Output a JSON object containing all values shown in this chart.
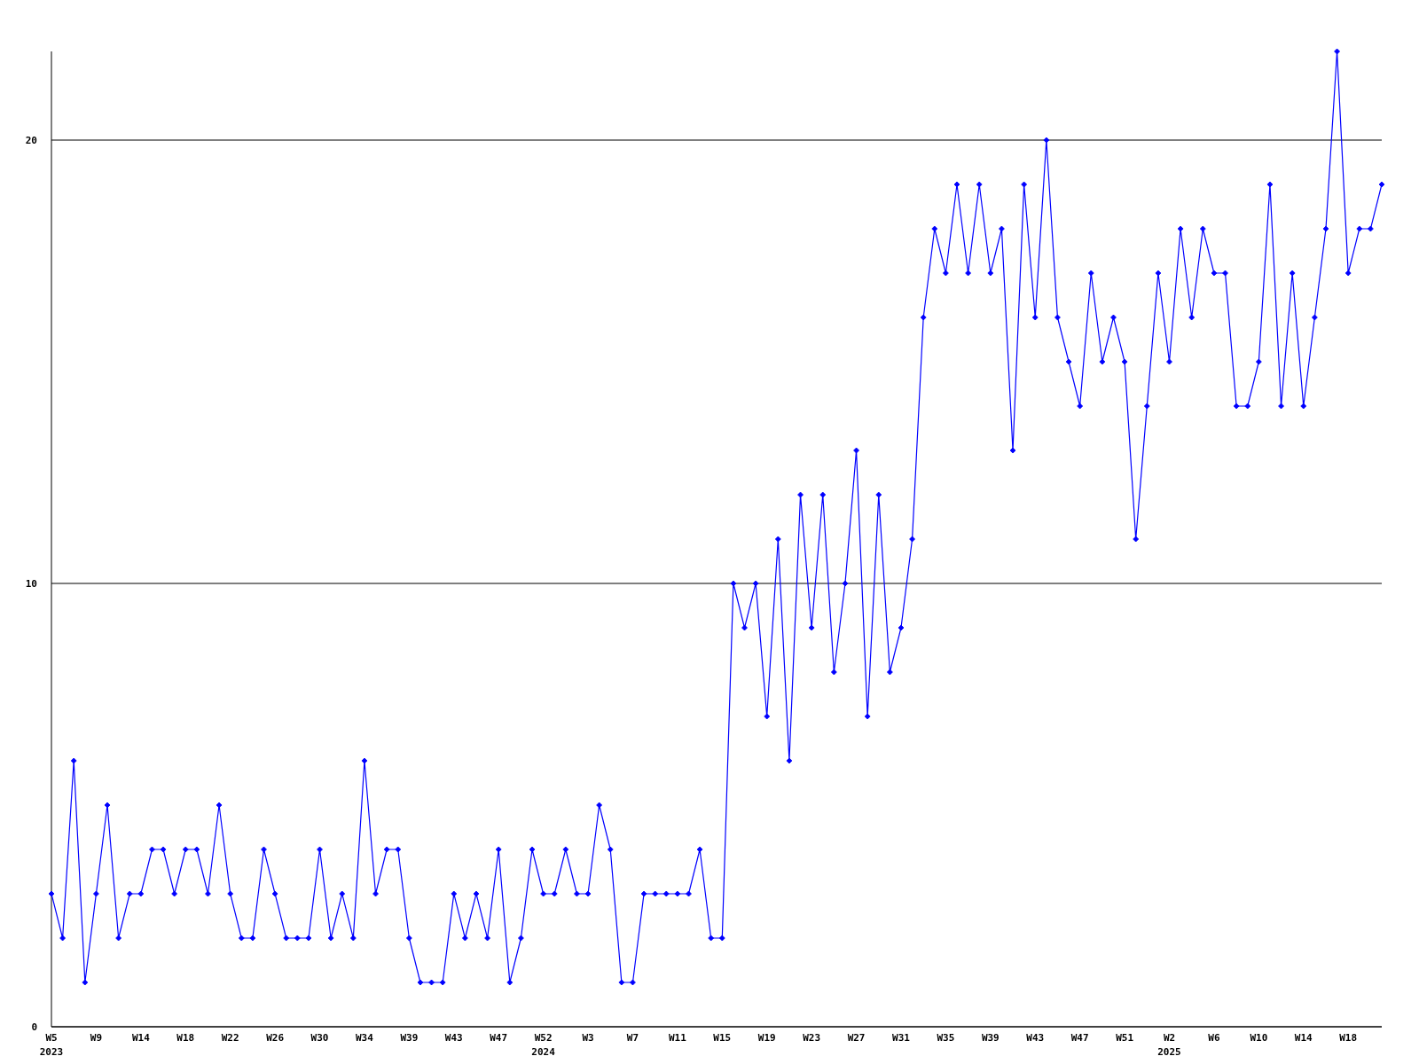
{
  "chart_data": {
    "type": "line",
    "categories": [
      "W5\n2023",
      null,
      null,
      null,
      "W9",
      null,
      null,
      null,
      "W14",
      null,
      null,
      null,
      "W18",
      null,
      null,
      null,
      "W22",
      null,
      null,
      null,
      "W26",
      null,
      null,
      null,
      "W30",
      null,
      null,
      null,
      "W34",
      null,
      null,
      null,
      "W39",
      null,
      null,
      null,
      "W43",
      null,
      null,
      null,
      "W47",
      null,
      null,
      null,
      "W52\n2024",
      null,
      null,
      null,
      "W3",
      null,
      null,
      null,
      "W7",
      null,
      null,
      null,
      "W11",
      null,
      null,
      null,
      "W15",
      null,
      null,
      null,
      "W19",
      null,
      null,
      null,
      "W23",
      null,
      null,
      null,
      "W27",
      null,
      null,
      null,
      "W31",
      null,
      null,
      null,
      "W35",
      null,
      null,
      null,
      "W39",
      null,
      null,
      null,
      "W43",
      null,
      null,
      null,
      "W47",
      null,
      null,
      null,
      "W51",
      null,
      null,
      null,
      "W2\n2025",
      null,
      null,
      null,
      "W6",
      null,
      null,
      null,
      "W10",
      null,
      null,
      null,
      "W14",
      null,
      null,
      null,
      "W18",
      null,
      null,
      null
    ],
    "series": [
      {
        "color": "#0000ff",
        "values": [
          3,
          2,
          6,
          1,
          3,
          5,
          2,
          3,
          3,
          4,
          4,
          3,
          4,
          4,
          3,
          5,
          3,
          2,
          2,
          4,
          3,
          2,
          2,
          2,
          4,
          2,
          3,
          2,
          6,
          3,
          4,
          4,
          2,
          1,
          1,
          1,
          3,
          2,
          3,
          2,
          4,
          1,
          2,
          4,
          3,
          3,
          4,
          3,
          3,
          5,
          4,
          1,
          1,
          3,
          3,
          3,
          3,
          3,
          4,
          2,
          2,
          10,
          9,
          10,
          7,
          11,
          6,
          12,
          9,
          12,
          8,
          10,
          13,
          7,
          12,
          8,
          9,
          11,
          16,
          18,
          17,
          19,
          17,
          19,
          17,
          18,
          13,
          19,
          16,
          20,
          16,
          15,
          14,
          17,
          15,
          16,
          15,
          11,
          14,
          17,
          15,
          18,
          16,
          18,
          17,
          17,
          14,
          14,
          15,
          19,
          14,
          17,
          14,
          16,
          18,
          22,
          17,
          18,
          18,
          19
        ]
      }
    ],
    "ylim": [
      0,
      22
    ],
    "yticks": [
      0,
      10,
      20
    ],
    "grid": "y",
    "marker": "diamond",
    "line_style": "solid"
  }
}
